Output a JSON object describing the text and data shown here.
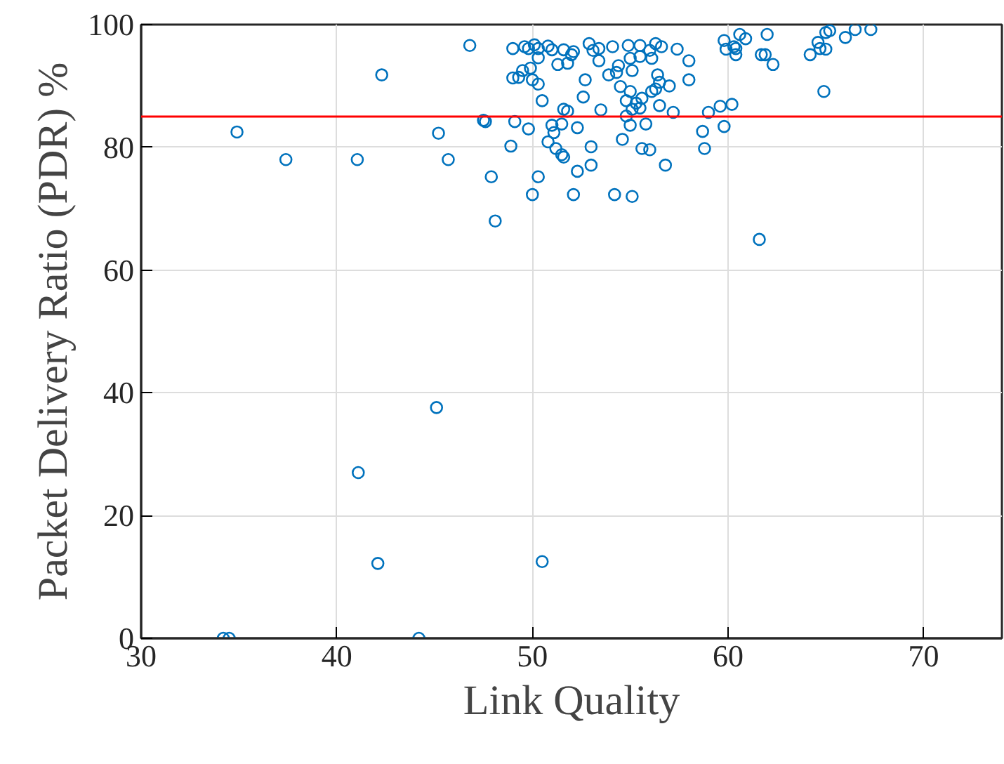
{
  "chart_data": {
    "type": "scatter",
    "xlabel": "Link Quality",
    "ylabel": "Packet Delivery Ratio (PDR) %",
    "xlim": [
      30,
      74
    ],
    "ylim": [
      0,
      100
    ],
    "xticks": [
      30,
      40,
      50,
      60,
      70
    ],
    "yticks": [
      0,
      20,
      40,
      60,
      80,
      100
    ],
    "grid": true,
    "marker": "circle",
    "ref_lines": [
      {
        "axis": "y",
        "value": 85,
        "color": "#ff0000"
      }
    ],
    "series": [
      {
        "color": "#0072bd",
        "x": [
          34.2,
          34.5,
          44.2,
          41.1,
          42.1,
          45.1,
          50.5,
          61.6,
          34.9,
          37.4,
          41.05,
          42.3,
          45.2,
          45.7,
          47.5,
          47.6,
          47.9,
          48.1,
          48.9,
          49.0,
          46.8,
          49.0,
          49.6,
          49.8,
          50.1,
          50.3,
          50.8,
          51.0,
          51.6,
          52.1,
          52.9,
          53.1,
          53.4,
          54.1,
          54.9,
          55.5,
          56.0,
          56.3,
          56.6,
          57.4,
          58.0,
          59.8,
          60.3,
          60.4,
          60.6,
          49.5,
          49.3,
          49.9,
          50.0,
          50.3,
          50.3,
          51.3,
          51.8,
          52.0,
          52.7,
          52.6,
          50.5,
          53.4,
          53.9,
          54.3,
          54.4,
          54.5,
          55.0,
          55.1,
          55.5,
          56.1,
          56.4,
          56.5,
          56.3,
          57.0,
          58.0,
          54.8,
          55.0,
          55.3,
          55.5,
          55.1,
          55.6,
          56.1,
          56.5,
          57.2,
          53.5,
          51.6,
          51.8,
          54.8,
          59.0,
          59.6,
          60.2,
          49.1,
          49.8,
          51.0,
          51.1,
          51.5,
          52.3,
          50.8,
          51.2,
          51.5,
          51.6,
          53.0,
          53.0,
          52.3,
          50.3,
          54.6,
          55.0,
          55.8,
          55.6,
          56.0,
          56.8,
          58.7,
          58.8,
          59.8,
          50.0,
          52.1,
          54.2,
          55.1,
          59.9,
          60.4,
          60.9,
          62.0,
          61.7,
          61.9,
          62.3,
          64.2,
          64.6,
          64.7,
          65.0,
          65.0,
          65.2,
          66.0,
          66.5,
          67.3,
          64.9
        ],
        "values": [
          0,
          0,
          0,
          27,
          12.2,
          37.6,
          12.5,
          65,
          82.5,
          78,
          78,
          91.8,
          82.3,
          78,
          84.4,
          84.2,
          75.2,
          68,
          80.2,
          91.3,
          96.6,
          96.1,
          96.4,
          96.1,
          96.7,
          96.1,
          96.5,
          95.9,
          95.9,
          95.6,
          96.9,
          95.8,
          96.1,
          96.4,
          96.6,
          96.6,
          95.8,
          96.9,
          96.4,
          96.0,
          94.1,
          97.4,
          96.4,
          95.1,
          98.4,
          92.5,
          91.4,
          92.9,
          91.0,
          90.3,
          94.6,
          93.5,
          93.7,
          95.1,
          91.0,
          88.2,
          87.6,
          94.1,
          91.8,
          92.2,
          93.3,
          89.9,
          94.5,
          92.5,
          94.8,
          94.5,
          91.8,
          90.6,
          89.5,
          90.0,
          91.0,
          87.6,
          89.1,
          87.2,
          86.4,
          86.2,
          88.0,
          89.1,
          86.8,
          85.7,
          86.1,
          86.2,
          85.9,
          85.1,
          85.7,
          86.7,
          87.0,
          84.2,
          83.0,
          83.6,
          82.4,
          83.8,
          83.2,
          80.9,
          79.8,
          78.8,
          78.4,
          80.1,
          77.1,
          76.1,
          75.2,
          81.3,
          83.6,
          83.8,
          79.8,
          79.6,
          77.1,
          82.6,
          79.8,
          83.4,
          72.3,
          72.3,
          72.3,
          72.0,
          96.0,
          96.1,
          97.7,
          98.4,
          95.1,
          95.1,
          93.5,
          95.1,
          97.1,
          96.1,
          96.0,
          98.7,
          99.0,
          97.9,
          99.2,
          99.2,
          89.1
        ]
      }
    ]
  }
}
